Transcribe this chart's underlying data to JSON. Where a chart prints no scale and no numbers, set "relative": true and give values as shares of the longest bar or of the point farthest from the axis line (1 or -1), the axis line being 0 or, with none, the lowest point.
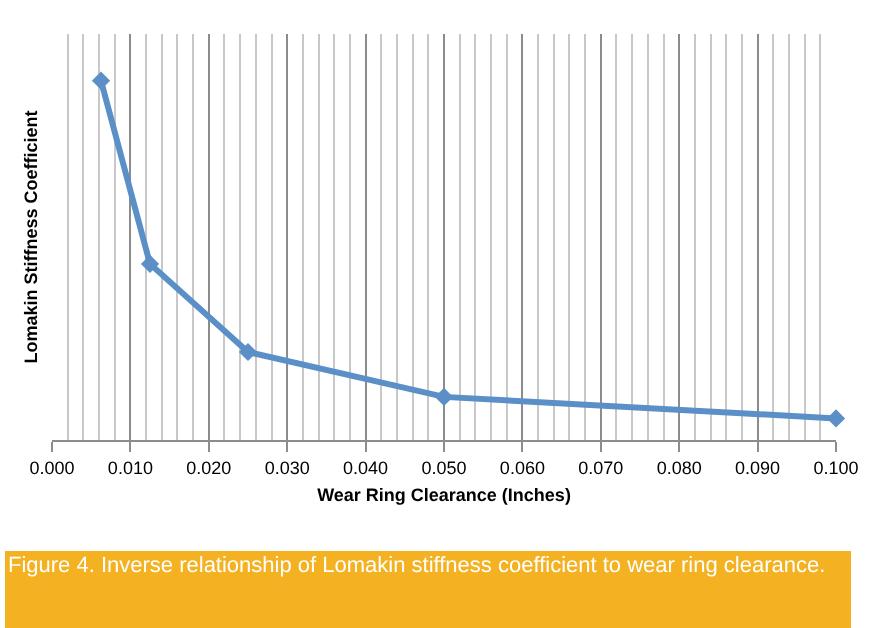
{
  "chart_data": {
    "type": "line",
    "relative": true,
    "xlabel": "Wear Ring Clearance (Inches)",
    "ylabel": "Lomakin Stiffness Coefficient",
    "annotations": [
      "Figure 4. Inverse relationship of Lomakin stiffness coefficient to wear ring clearance."
    ],
    "x": [
      0.00625,
      0.0125,
      0.025,
      0.05,
      0.1
    ],
    "series": [
      {
        "color": "#5b8fc7",
        "values": [
          1,
          0.49,
          0.245,
          0.12,
          0.06
        ]
      }
    ],
    "xlim": [
      0,
      0.1
    ],
    "xticks": [
      {
        "value": 0,
        "label": "0.000"
      },
      {
        "value": 0.01,
        "label": "0.010"
      },
      {
        "value": 0.02,
        "label": "0.020"
      },
      {
        "value": 0.03,
        "label": "0.030"
      },
      {
        "value": 0.04,
        "label": "0.040"
      },
      {
        "value": 0.05,
        "label": "0.050"
      },
      {
        "value": 0.06,
        "label": "0.060"
      },
      {
        "value": 0.07,
        "label": "0.070"
      },
      {
        "value": 0.08,
        "label": "0.080"
      },
      {
        "value": 0.09,
        "label": "0.090"
      },
      {
        "value": 0.1,
        "label": "0.100"
      }
    ],
    "grid": "x",
    "marker": "diamond",
    "line_style": "solid"
  }
}
